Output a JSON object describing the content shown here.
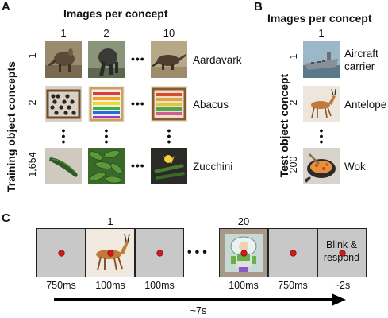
{
  "panel_a": {
    "letter": "A",
    "header": "Images per concept",
    "columns": [
      "1",
      "2",
      "10"
    ],
    "y_title": "Training object concepts",
    "rows": [
      {
        "num": "1",
        "concept": "Aardavark"
      },
      {
        "num": "2",
        "concept": "Abacus"
      },
      {
        "num": "1,654",
        "concept": "Zucchini"
      }
    ]
  },
  "panel_b": {
    "letter": "B",
    "header": "Images per concept",
    "column": "1",
    "y_title": "Test object concept",
    "rows": [
      {
        "num": "1",
        "concept_line1": "Aircraft",
        "concept_line2": "carrier"
      },
      {
        "num": "2",
        "concept_line1": "Antelope",
        "concept_line2": ""
      },
      {
        "num": "200",
        "concept_line1": "Wok",
        "concept_line2": ""
      }
    ]
  },
  "panel_c": {
    "letter": "C",
    "image_labels": [
      "1",
      "20"
    ],
    "blink_line1": "Blink &",
    "blink_line2": "respond",
    "durations": [
      "750ms",
      "100ms",
      "100ms",
      "100ms",
      "750ms",
      "~2s"
    ],
    "total": "~7s"
  },
  "colors": {
    "fixation": "#d11a1a",
    "frame_bg": "#c8c8c8"
  }
}
